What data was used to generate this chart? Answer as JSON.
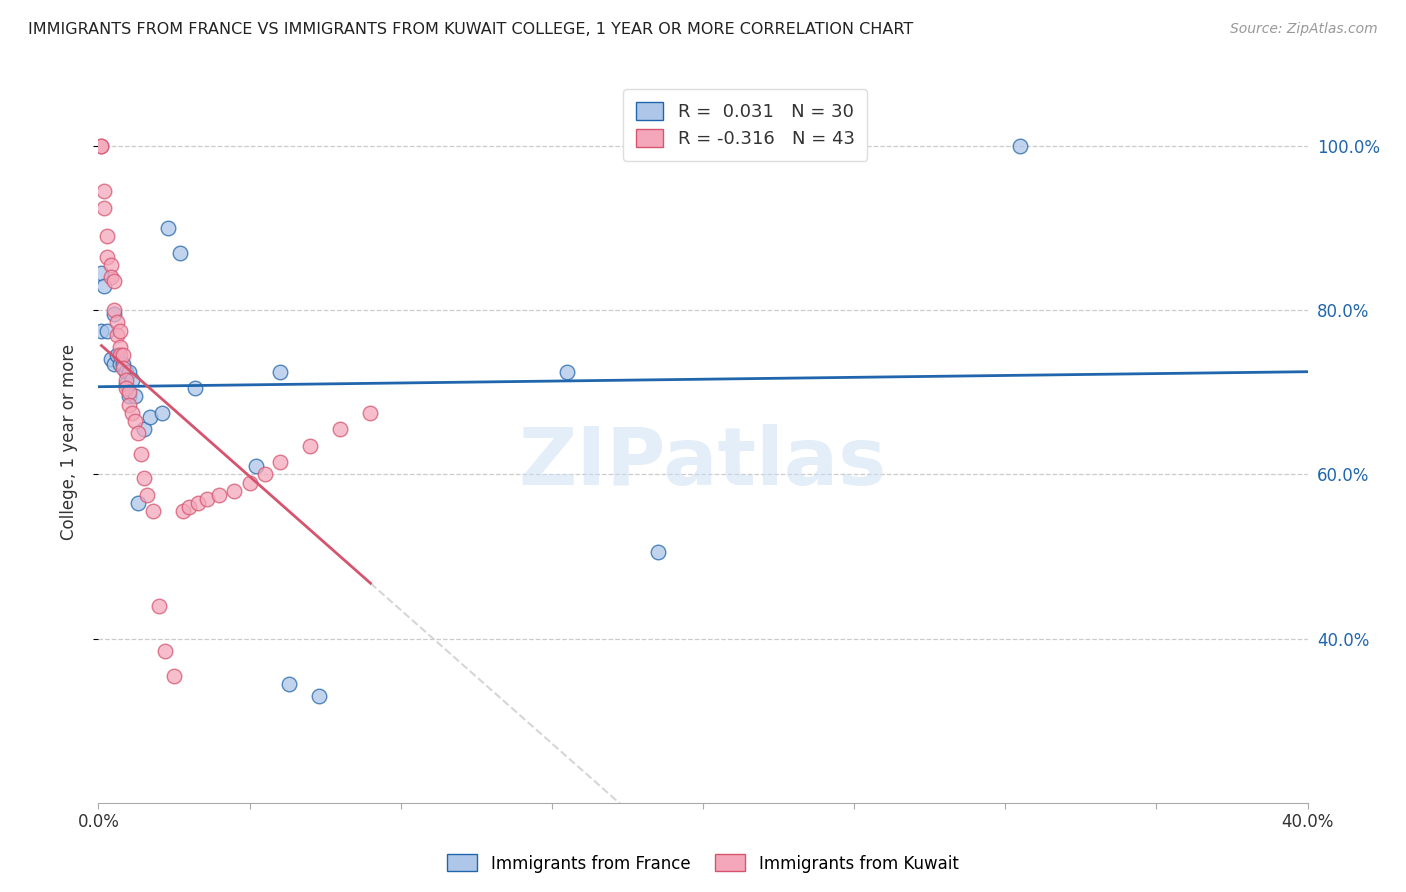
{
  "title": "IMMIGRANTS FROM FRANCE VS IMMIGRANTS FROM KUWAIT COLLEGE, 1 YEAR OR MORE CORRELATION CHART",
  "source": "Source: ZipAtlas.com",
  "ylabel": "College, 1 year or more",
  "xlim": [
    0.0,
    0.4
  ],
  "ylim": [
    0.2,
    1.08
  ],
  "legend1_R": "0.031",
  "legend1_N": "30",
  "legend2_R": "-0.316",
  "legend2_N": "43",
  "france_color": "#aec6e8",
  "kuwait_color": "#f4a7bb",
  "france_line_color": "#2166ac",
  "kuwait_line_color": "#d6546e",
  "watermark": "ZIPatlas",
  "france_x": [
    0.001,
    0.001,
    0.002,
    0.003,
    0.004,
    0.005,
    0.005,
    0.006,
    0.007,
    0.008,
    0.009,
    0.009,
    0.01,
    0.01,
    0.011,
    0.012,
    0.013,
    0.015,
    0.017,
    0.021,
    0.023,
    0.027,
    0.032,
    0.052,
    0.06,
    0.063,
    0.073,
    0.155,
    0.185,
    0.305
  ],
  "france_y": [
    0.775,
    0.845,
    0.83,
    0.775,
    0.74,
    0.735,
    0.795,
    0.745,
    0.735,
    0.735,
    0.725,
    0.71,
    0.725,
    0.695,
    0.715,
    0.695,
    0.565,
    0.655,
    0.67,
    0.675,
    0.9,
    0.87,
    0.705,
    0.61,
    0.725,
    0.345,
    0.33,
    0.725,
    0.505,
    1.0
  ],
  "kuwait_x": [
    0.001,
    0.001,
    0.002,
    0.002,
    0.003,
    0.003,
    0.004,
    0.004,
    0.005,
    0.005,
    0.006,
    0.006,
    0.007,
    0.007,
    0.007,
    0.008,
    0.008,
    0.009,
    0.009,
    0.01,
    0.01,
    0.011,
    0.012,
    0.013,
    0.014,
    0.015,
    0.016,
    0.018,
    0.02,
    0.022,
    0.025,
    0.028,
    0.03,
    0.033,
    0.036,
    0.04,
    0.045,
    0.05,
    0.055,
    0.06,
    0.07,
    0.08,
    0.09
  ],
  "kuwait_y": [
    1.0,
    1.0,
    0.945,
    0.925,
    0.89,
    0.865,
    0.855,
    0.84,
    0.835,
    0.8,
    0.785,
    0.77,
    0.775,
    0.755,
    0.745,
    0.745,
    0.73,
    0.715,
    0.705,
    0.7,
    0.685,
    0.675,
    0.665,
    0.65,
    0.625,
    0.595,
    0.575,
    0.555,
    0.44,
    0.385,
    0.355,
    0.555,
    0.56,
    0.565,
    0.57,
    0.575,
    0.58,
    0.59,
    0.6,
    0.615,
    0.635,
    0.655,
    0.675
  ],
  "grid_yticks": [
    0.4,
    0.6,
    0.8,
    1.0
  ],
  "right_ytick_labels": [
    "40.0%",
    "60.0%",
    "80.0%",
    "100.0%"
  ],
  "xtick_positions": [
    0.0,
    0.05,
    0.1,
    0.15,
    0.2,
    0.25,
    0.3,
    0.35,
    0.4
  ]
}
